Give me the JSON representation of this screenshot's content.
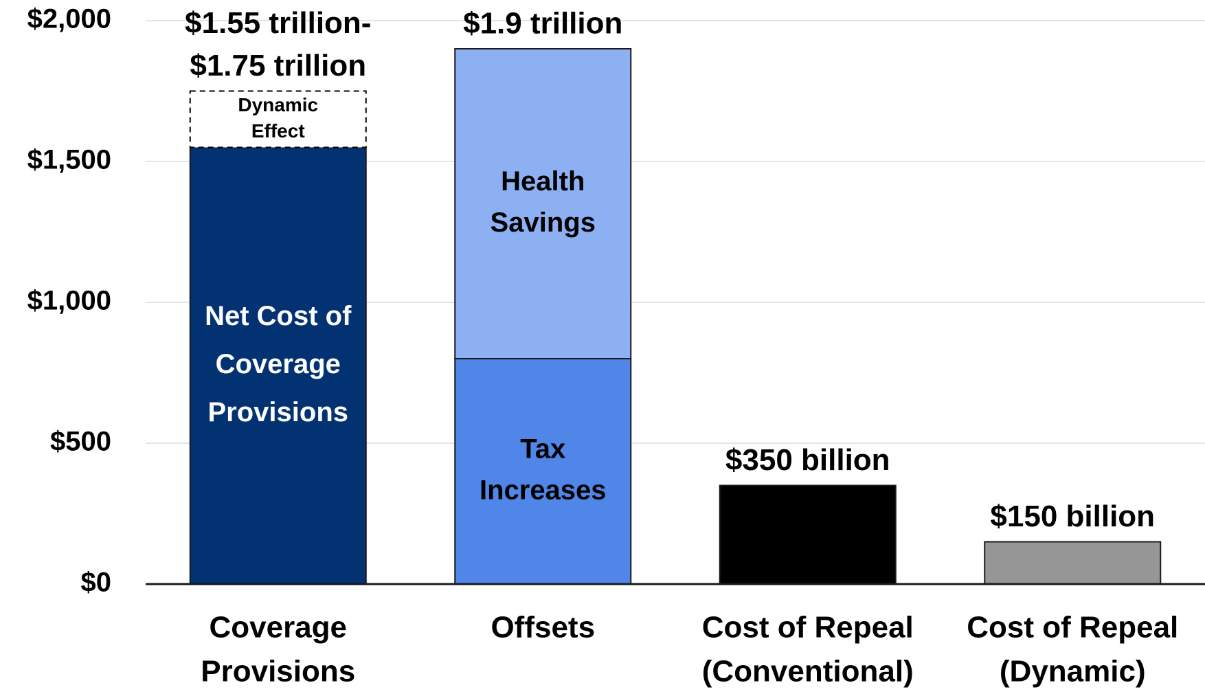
{
  "chart_data": {
    "type": "bar",
    "ylim": [
      0,
      2000
    ],
    "y_ticks": [
      "$0",
      "$500",
      "$1,000",
      "$1,500",
      "$2,000"
    ],
    "y_tick_values": [
      0,
      500,
      1000,
      1500,
      2000
    ],
    "grid": true,
    "categories": [
      [
        "Coverage",
        "Provisions"
      ],
      [
        "Offsets"
      ],
      [
        "Cost of Repeal",
        "(Conventional)"
      ],
      [
        "Cost of Repeal",
        "(Dynamic)"
      ]
    ],
    "bars": [
      {
        "top_label": [
          "$1.55 trillion-",
          "$1.75 trillion"
        ],
        "segments": [
          {
            "value": 1550,
            "color": "#033273",
            "text_color": "#ffffff",
            "label": [
              "Net Cost of",
              "Coverage",
              "Provisions"
            ],
            "style": "solid"
          },
          {
            "value": 200,
            "color": "#ffffff",
            "text_color": "#000000",
            "label": [
              "Dynamic",
              "Effect"
            ],
            "style": "dashed"
          }
        ]
      },
      {
        "top_label": [
          "$1.9 trillion"
        ],
        "segments": [
          {
            "value": 800,
            "color": "#4f86e8",
            "text_color": "#000000",
            "label": [
              "Tax",
              "Increases"
            ],
            "style": "solid"
          },
          {
            "value": 1100,
            "color": "#8db0f2",
            "text_color": "#000000",
            "label": [
              "Health",
              "Savings"
            ],
            "style": "solid"
          }
        ]
      },
      {
        "top_label": [
          "$350 billion"
        ],
        "segments": [
          {
            "value": 350,
            "color": "#000000",
            "text_color": "#ffffff",
            "label": [],
            "style": "solid"
          }
        ]
      },
      {
        "top_label": [
          "$150 billion"
        ],
        "segments": [
          {
            "value": 150,
            "color": "#969696",
            "text_color": "#000000",
            "label": [],
            "style": "solid"
          }
        ]
      }
    ]
  }
}
